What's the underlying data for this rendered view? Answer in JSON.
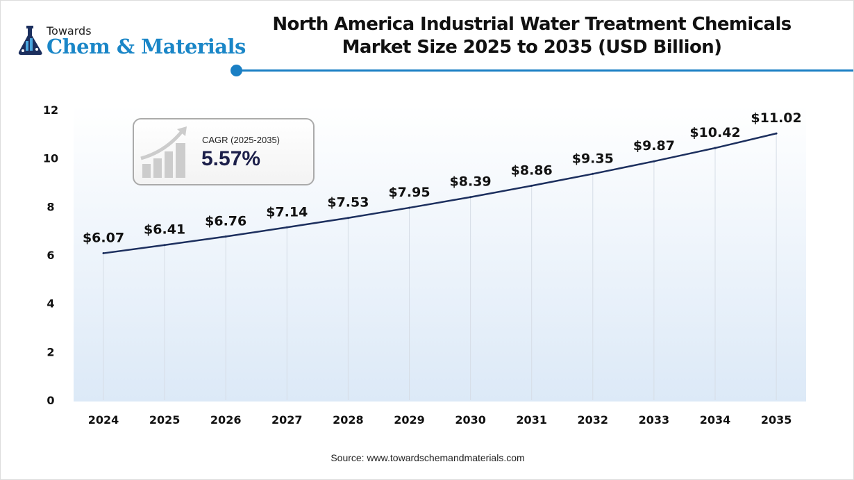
{
  "logo": {
    "top": "Towards",
    "brand": "Chem & Materials"
  },
  "title_line1": "North America Industrial Water Treatment Chemicals",
  "title_line2": "Market Size 2025 to 2035 (USD Billion)",
  "cagr": {
    "label": "CAGR (2025-2035)",
    "value": "5.57%"
  },
  "source": "Source: www.towardschemandmaterials.com",
  "colors": {
    "line": "#1c2f5e",
    "accent": "#1a7fc4",
    "area_top": "#ffffff",
    "area_bottom": "#dce9f7"
  },
  "chart_data": {
    "type": "line",
    "title": "North America Industrial Water Treatment Chemicals Market Size 2025 to 2035 (USD Billion)",
    "categories": [
      "2024",
      "2025",
      "2026",
      "2027",
      "2028",
      "2029",
      "2030",
      "2031",
      "2032",
      "2033",
      "2034",
      "2035"
    ],
    "values": [
      6.07,
      6.41,
      6.76,
      7.14,
      7.53,
      7.95,
      8.39,
      8.86,
      9.35,
      9.87,
      10.42,
      11.02
    ],
    "labels": [
      "$6.07",
      "$6.41",
      "$6.76",
      "$7.14",
      "$7.53",
      "$7.95",
      "$8.39",
      "$8.86",
      "$9.35",
      "$9.87",
      "$10.42",
      "$11.02"
    ],
    "yticks": [
      "0",
      "2",
      "4",
      "6",
      "8",
      "10",
      "12"
    ],
    "ylim": [
      0,
      12
    ],
    "grid": "vertical"
  }
}
